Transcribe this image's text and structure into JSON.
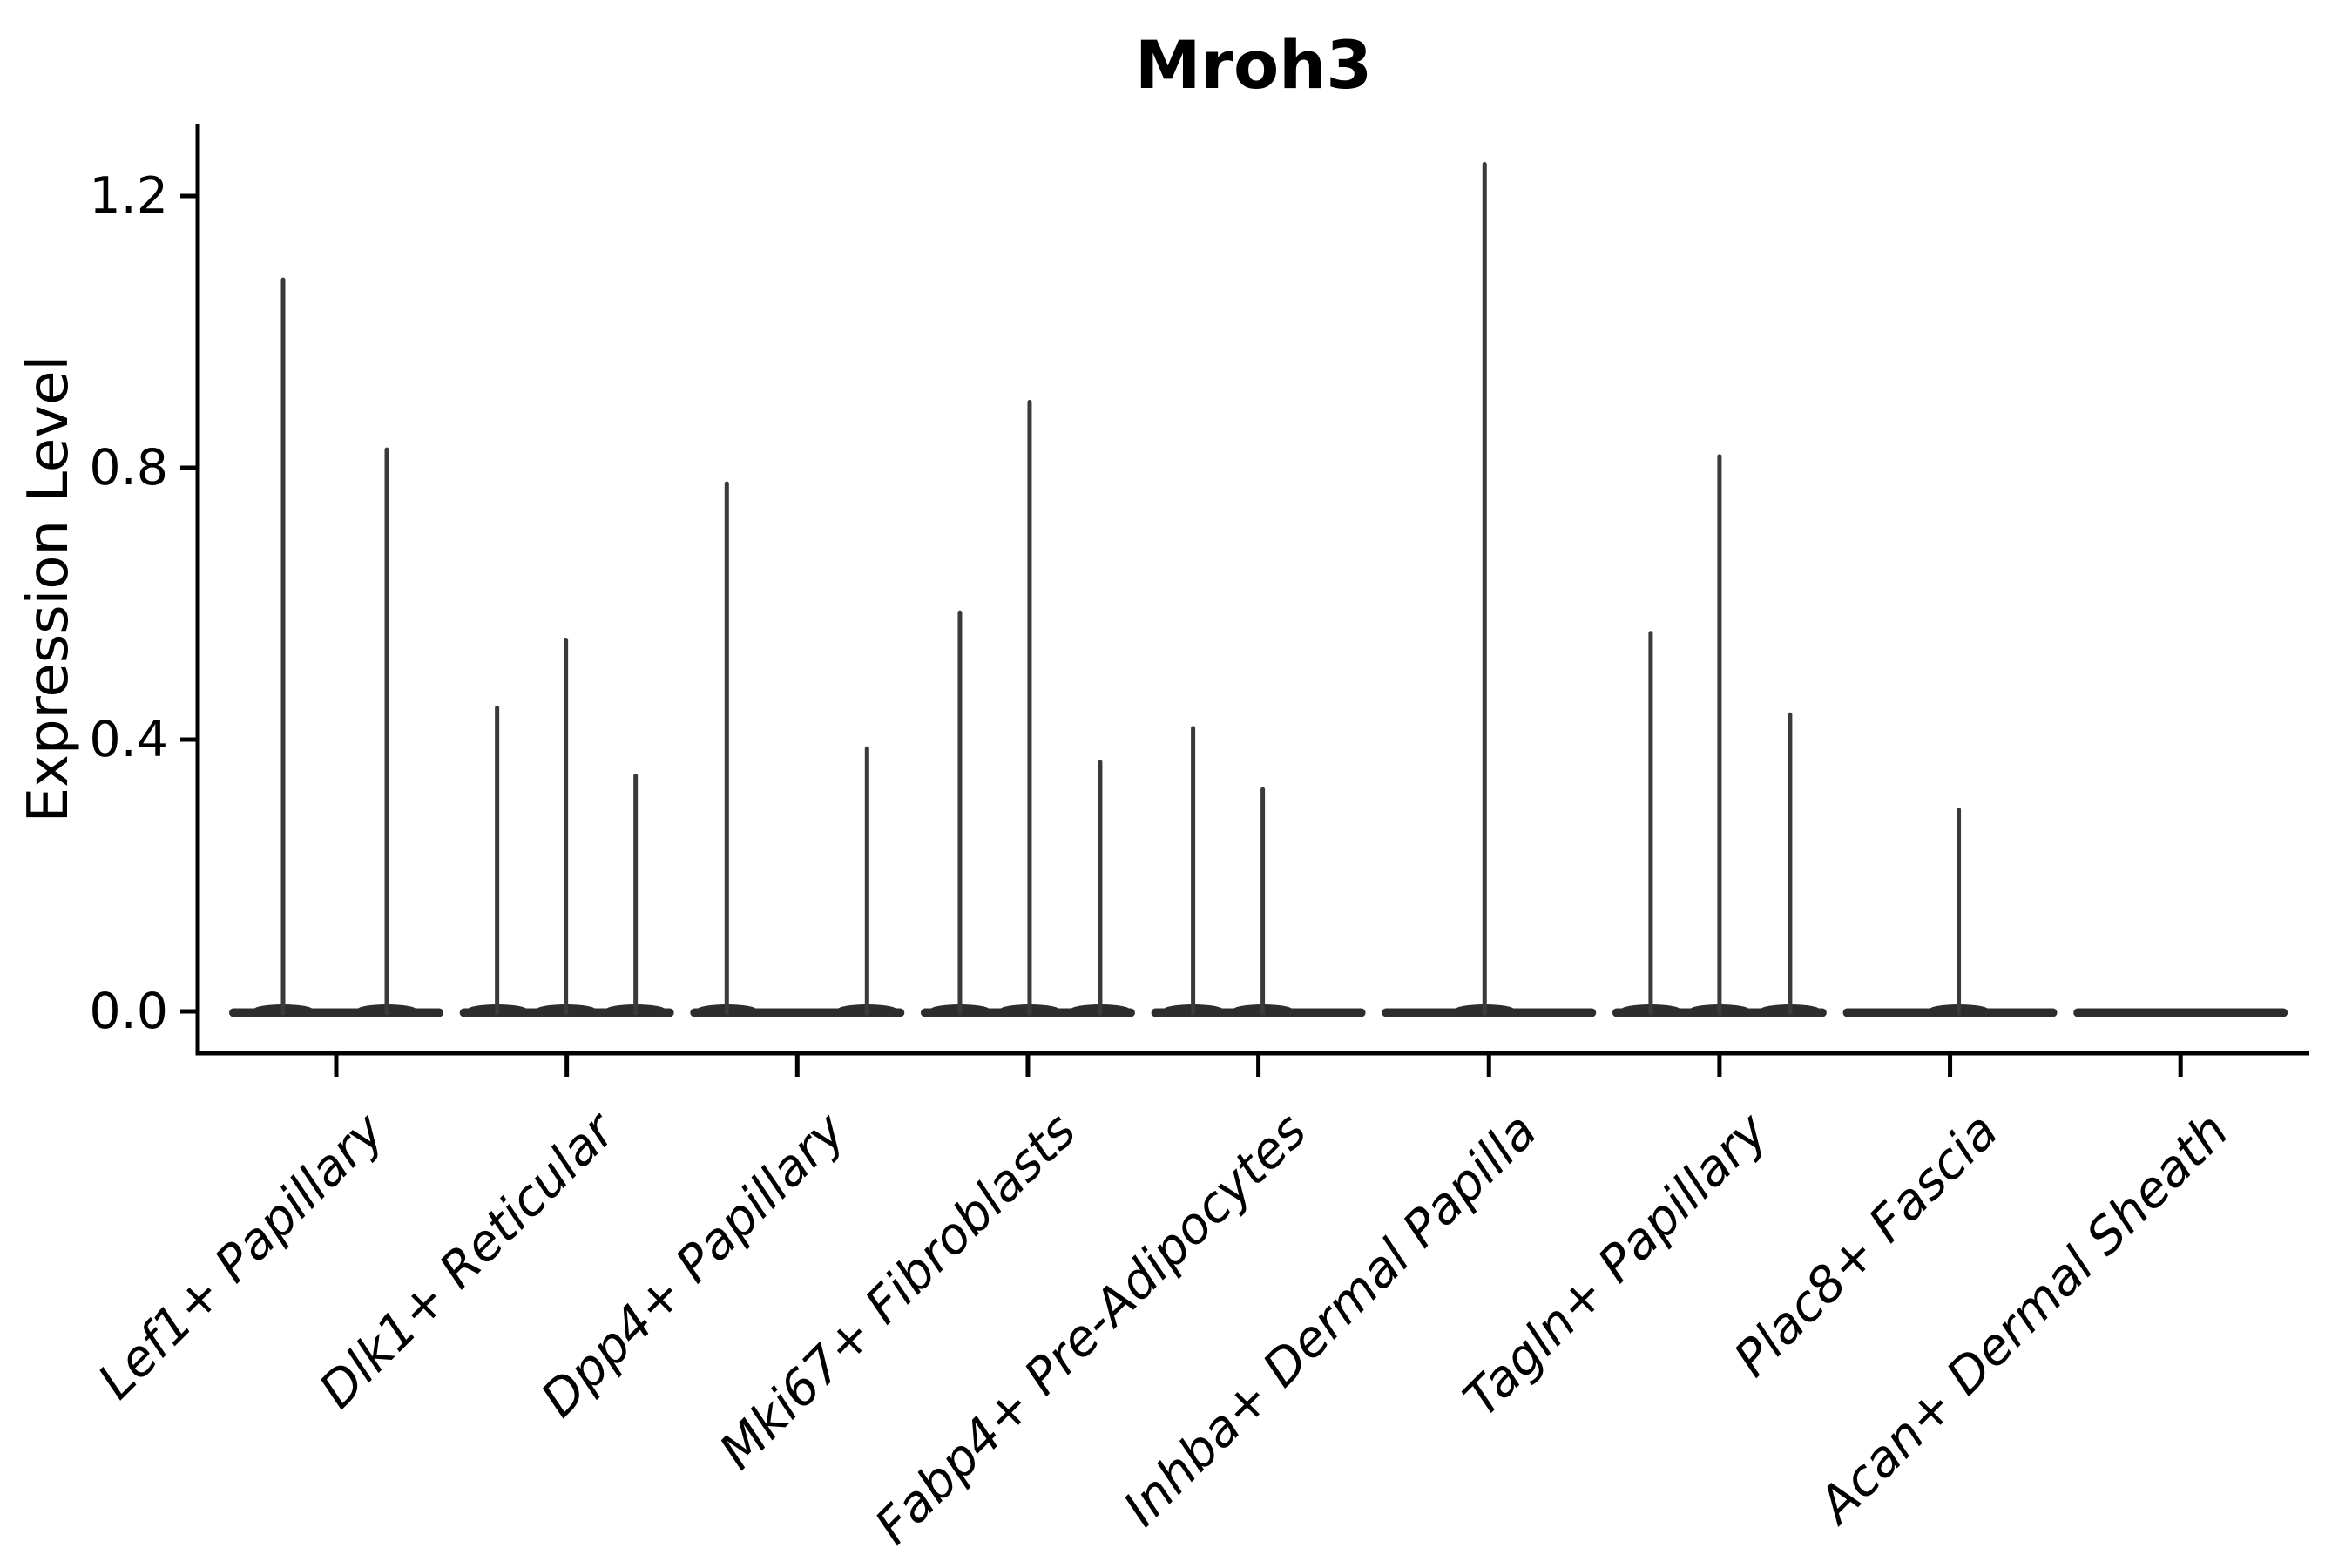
{
  "chart_data": {
    "type": "violin",
    "title": "Mroh3",
    "xlabel": "",
    "ylabel": "Expression Level",
    "yticks": [
      "0.0",
      "0.4",
      "0.8",
      "1.2"
    ],
    "ytick_values": [
      0.0,
      0.4,
      0.8,
      1.2
    ],
    "ylim": [
      0,
      1.31
    ],
    "grid": false,
    "legend": "none",
    "categories": [
      "Lef1+ Papillary",
      "Dlk1+ Reticular",
      "Dpp4+ Papillary",
      "Mki67+ Fibroblasts",
      "Fabp4+ Pre-Adipocytes",
      "Inhba+ Dermal Papilla",
      "Tagln+ Papillary",
      "Plac8+ Fascia",
      "Acan+ Dermal Sheath"
    ],
    "violins": [
      {
        "category": "Lef1+ Papillary",
        "spikes": [
          {
            "offset": -61,
            "value": 1.08
          },
          {
            "offset": 58,
            "value": 0.83
          }
        ]
      },
      {
        "category": "Dlk1+ Reticular",
        "spikes": [
          {
            "offset": -80,
            "value": 0.45
          },
          {
            "offset": -1,
            "value": 0.55
          },
          {
            "offset": 79,
            "value": 0.35
          }
        ]
      },
      {
        "category": "Dpp4+ Papillary",
        "spikes": [
          {
            "offset": -81,
            "value": 0.78
          },
          {
            "offset": 80,
            "value": 0.39
          }
        ]
      },
      {
        "category": "Mki67+ Fibroblasts",
        "spikes": [
          {
            "offset": -78,
            "value": 0.59
          },
          {
            "offset": 2,
            "value": 0.9
          },
          {
            "offset": 83,
            "value": 0.37
          }
        ]
      },
      {
        "category": "Fabp4+ Pre-Adipocytes",
        "spikes": [
          {
            "offset": -75,
            "value": 0.42
          },
          {
            "offset": 5,
            "value": 0.33
          }
        ]
      },
      {
        "category": "Inhba+ Dermal Papilla",
        "spikes": [
          {
            "offset": -5,
            "value": 1.25
          }
        ]
      },
      {
        "category": "Tagln+ Papillary",
        "spikes": [
          {
            "offset": -79,
            "value": 0.56
          },
          {
            "offset": 0,
            "value": 0.82
          },
          {
            "offset": 81,
            "value": 0.44
          }
        ]
      },
      {
        "category": "Plac8+ Fascia",
        "spikes": [
          {
            "offset": 10,
            "value": 0.3
          }
        ]
      },
      {
        "category": "Acan+ Dermal Sheath",
        "spikes": []
      }
    ],
    "colors": {
      "violin_base": "#2d2d2d",
      "spike": "#3a3a3a",
      "axis": "#000000",
      "text": "#000000",
      "background": "#ffffff"
    }
  }
}
